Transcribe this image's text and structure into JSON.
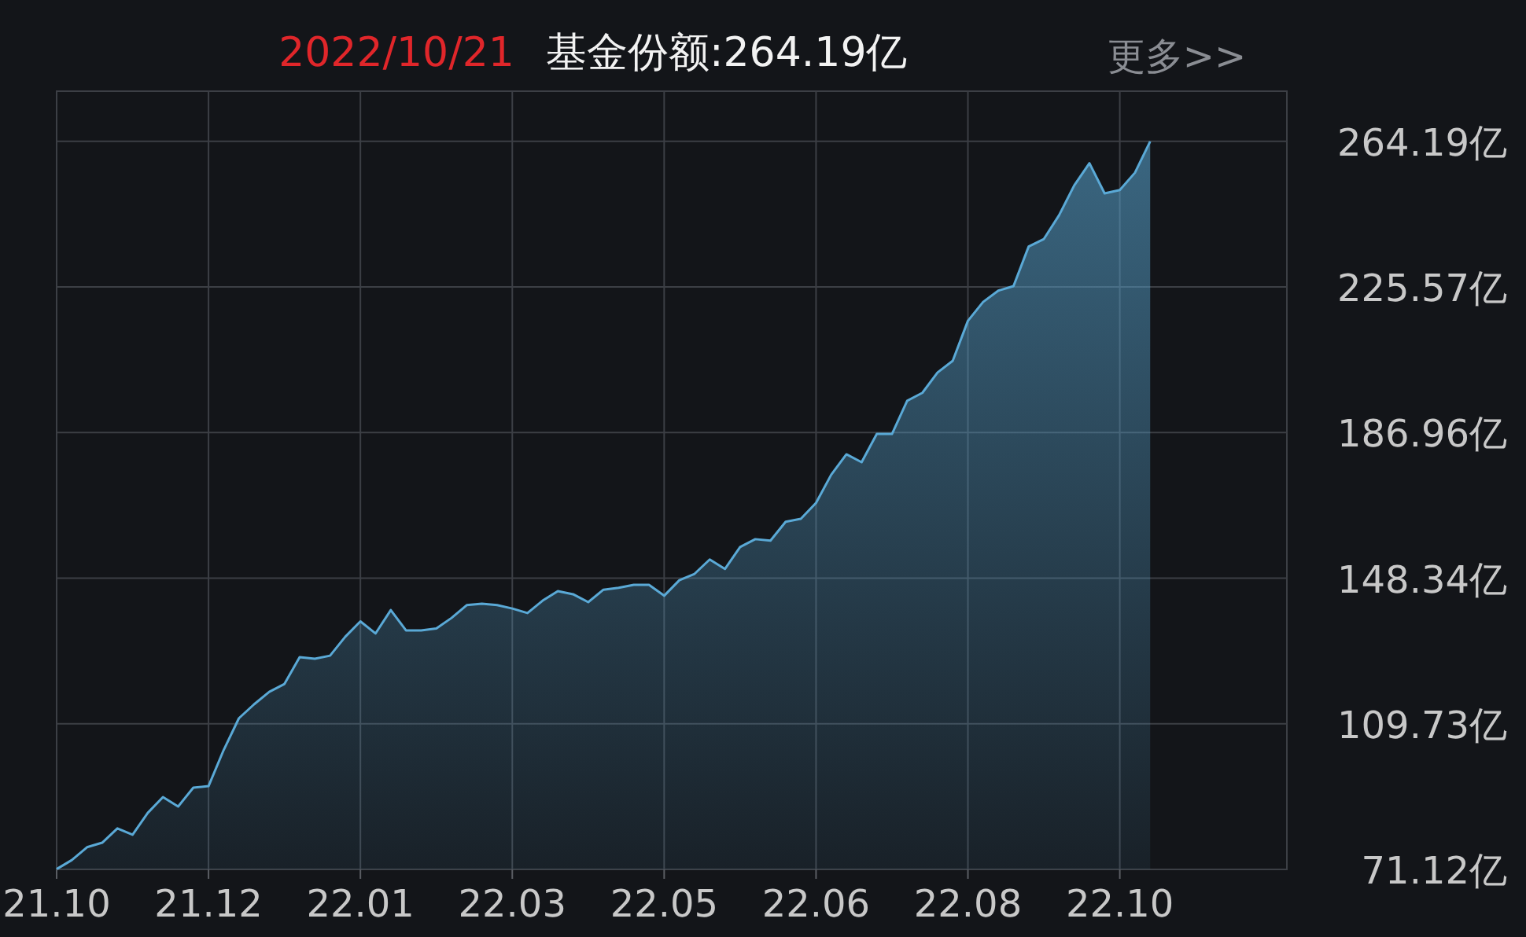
{
  "chart_data": {
    "type": "area",
    "title": "2022/10/21",
    "subtitle": "基金份额:264.19亿",
    "annotations": [
      "更多>>"
    ],
    "categories": [
      "21.10",
      null,
      null,
      null,
      null,
      null,
      null,
      null,
      null,
      null,
      "21.12",
      null,
      null,
      null,
      null,
      null,
      null,
      null,
      null,
      null,
      "22.01",
      null,
      null,
      null,
      null,
      null,
      null,
      null,
      null,
      null,
      "22.03",
      null,
      null,
      null,
      null,
      null,
      null,
      null,
      null,
      null,
      "22.05",
      null,
      null,
      null,
      null,
      null,
      null,
      null,
      null,
      null,
      "22.06",
      null,
      null,
      null,
      null,
      null,
      null,
      null,
      null,
      null,
      "22.08",
      null,
      null,
      null,
      null,
      null,
      null,
      null,
      null,
      null,
      "22.10",
      null,
      null,
      null,
      null,
      null,
      null,
      null,
      null,
      null,
      null,
      null
    ],
    "series": [
      {
        "color": "#5aa9d6",
        "values": [
          71.2,
          73.6,
          77.0,
          78.2,
          82.0,
          80.3,
          86.1,
          90.3,
          87.8,
          92.8,
          93.2,
          102.8,
          111.2,
          114.9,
          118.2,
          120.3,
          127.4,
          127.0,
          127.8,
          132.8,
          136.9,
          133.7,
          139.9,
          134.5,
          134.5,
          135.0,
          137.8,
          141.2,
          141.6,
          141.2,
          140.3,
          139.1,
          142.4,
          144.9,
          144.1,
          142.0,
          145.3,
          145.8,
          146.6,
          146.6,
          143.7,
          147.8,
          149.5,
          153.3,
          150.8,
          156.6,
          158.7,
          158.3,
          163.3,
          164.1,
          168.3,
          175.8,
          181.2,
          179.1,
          186.6,
          186.6,
          195.4,
          197.5,
          202.9,
          206.0,
          216.6,
          221.6,
          224.6,
          225.8,
          236.3,
          238.3,
          244.6,
          252.5,
          258.4,
          250.4,
          251.3,
          255.9,
          264.2,
          null,
          null,
          null,
          null,
          null,
          null,
          null,
          null,
          null
        ]
      }
    ],
    "ylim": [
      71.12,
      277.5
    ],
    "yticks": [
      {
        "value": 71.12,
        "label": "71.12亿"
      },
      {
        "value": 109.73,
        "label": "109.73亿"
      },
      {
        "value": 148.34,
        "label": "148.34亿"
      },
      {
        "value": 186.96,
        "label": "186.96亿"
      },
      {
        "value": 225.57,
        "label": "225.57亿"
      },
      {
        "value": 264.19,
        "label": "264.19亿"
      }
    ],
    "grid": true
  }
}
